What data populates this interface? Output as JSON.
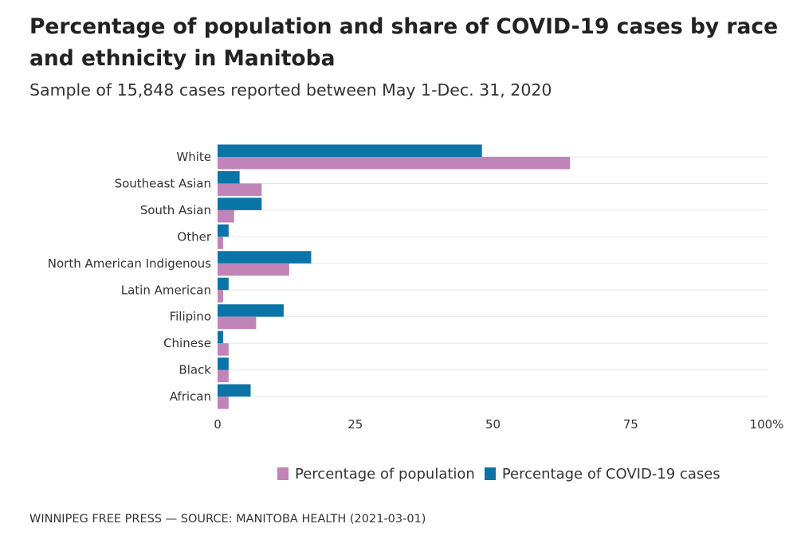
{
  "chart_data": {
    "type": "bar",
    "orientation": "horizontal",
    "title": "Percentage of population and share of COVID-19 cases by race and ethnicity in Manitoba",
    "subtitle": "Sample of 15,848 cases reported between May 1-Dec. 31, 2020",
    "categories": [
      "White",
      "Southeast Asian",
      "South Asian",
      "Other",
      "North American Indigenous",
      "Latin American",
      "Filipino",
      "Chinese",
      "Black",
      "African"
    ],
    "series": [
      {
        "name": "Percentage of COVID-19 cases",
        "color": "#0a74a6",
        "values": [
          48,
          4,
          8,
          2,
          17,
          2,
          12,
          1,
          2,
          6
        ]
      },
      {
        "name": "Percentage of population",
        "color": "#c084b8",
        "values": [
          64,
          8,
          3,
          1,
          13,
          1,
          7,
          2,
          2,
          2
        ]
      }
    ],
    "xlim": [
      0,
      100
    ],
    "xticks": [
      0,
      25,
      50,
      75,
      100
    ],
    "xtick_labels": [
      "0",
      "25",
      "50",
      "75",
      "100%"
    ],
    "grid": true,
    "legend": [
      "Percentage of population",
      "Percentage of COVID-19 cases"
    ],
    "legend_placement": "bottom",
    "source": "WINNIPEG FREE PRESS — SOURCE: MANITOBA HEALTH (2021-03-01)"
  }
}
